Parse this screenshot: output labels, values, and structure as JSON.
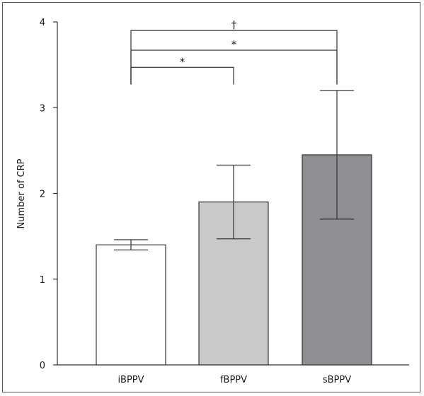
{
  "chart_data": {
    "type": "bar",
    "title": "",
    "xlabel": "",
    "ylabel": "Number of CRP",
    "ylim": [
      0,
      4
    ],
    "yticks": [
      0,
      1,
      2,
      3,
      4
    ],
    "categories": [
      "iBPPV",
      "fBPPV",
      "sBPPV"
    ],
    "values": [
      1.4,
      1.9,
      2.45
    ],
    "error_upper": [
      1.46,
      2.33,
      3.2
    ],
    "error_lower": [
      1.34,
      1.47,
      1.7
    ],
    "bar_colors": [
      "#ffffff",
      "#c8c9cb",
      "#8e8f92"
    ],
    "grid": false,
    "legend": "none",
    "significance": [
      {
        "from": "iBPPV",
        "to": "fBPPV",
        "label": "*",
        "level": 3.47
      },
      {
        "from": "iBPPV",
        "to": "sBPPV",
        "label": "*",
        "level": 3.67
      },
      {
        "from": "iBPPV",
        "to": "sBPPV",
        "label": "†",
        "level": 3.9
      }
    ]
  }
}
